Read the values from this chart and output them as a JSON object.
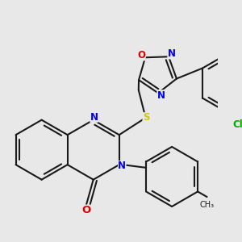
{
  "bg_color": "#e8e8e8",
  "bond_color": "#1a1a1a",
  "bond_lw": 1.5,
  "atom_colors": {
    "N": "#0000ee",
    "O": "#dd0000",
    "S": "#cccc00",
    "Cl": "#00aa00",
    "C": "#1a1a1a"
  },
  "afs": 8.5,
  "B": 0.42
}
